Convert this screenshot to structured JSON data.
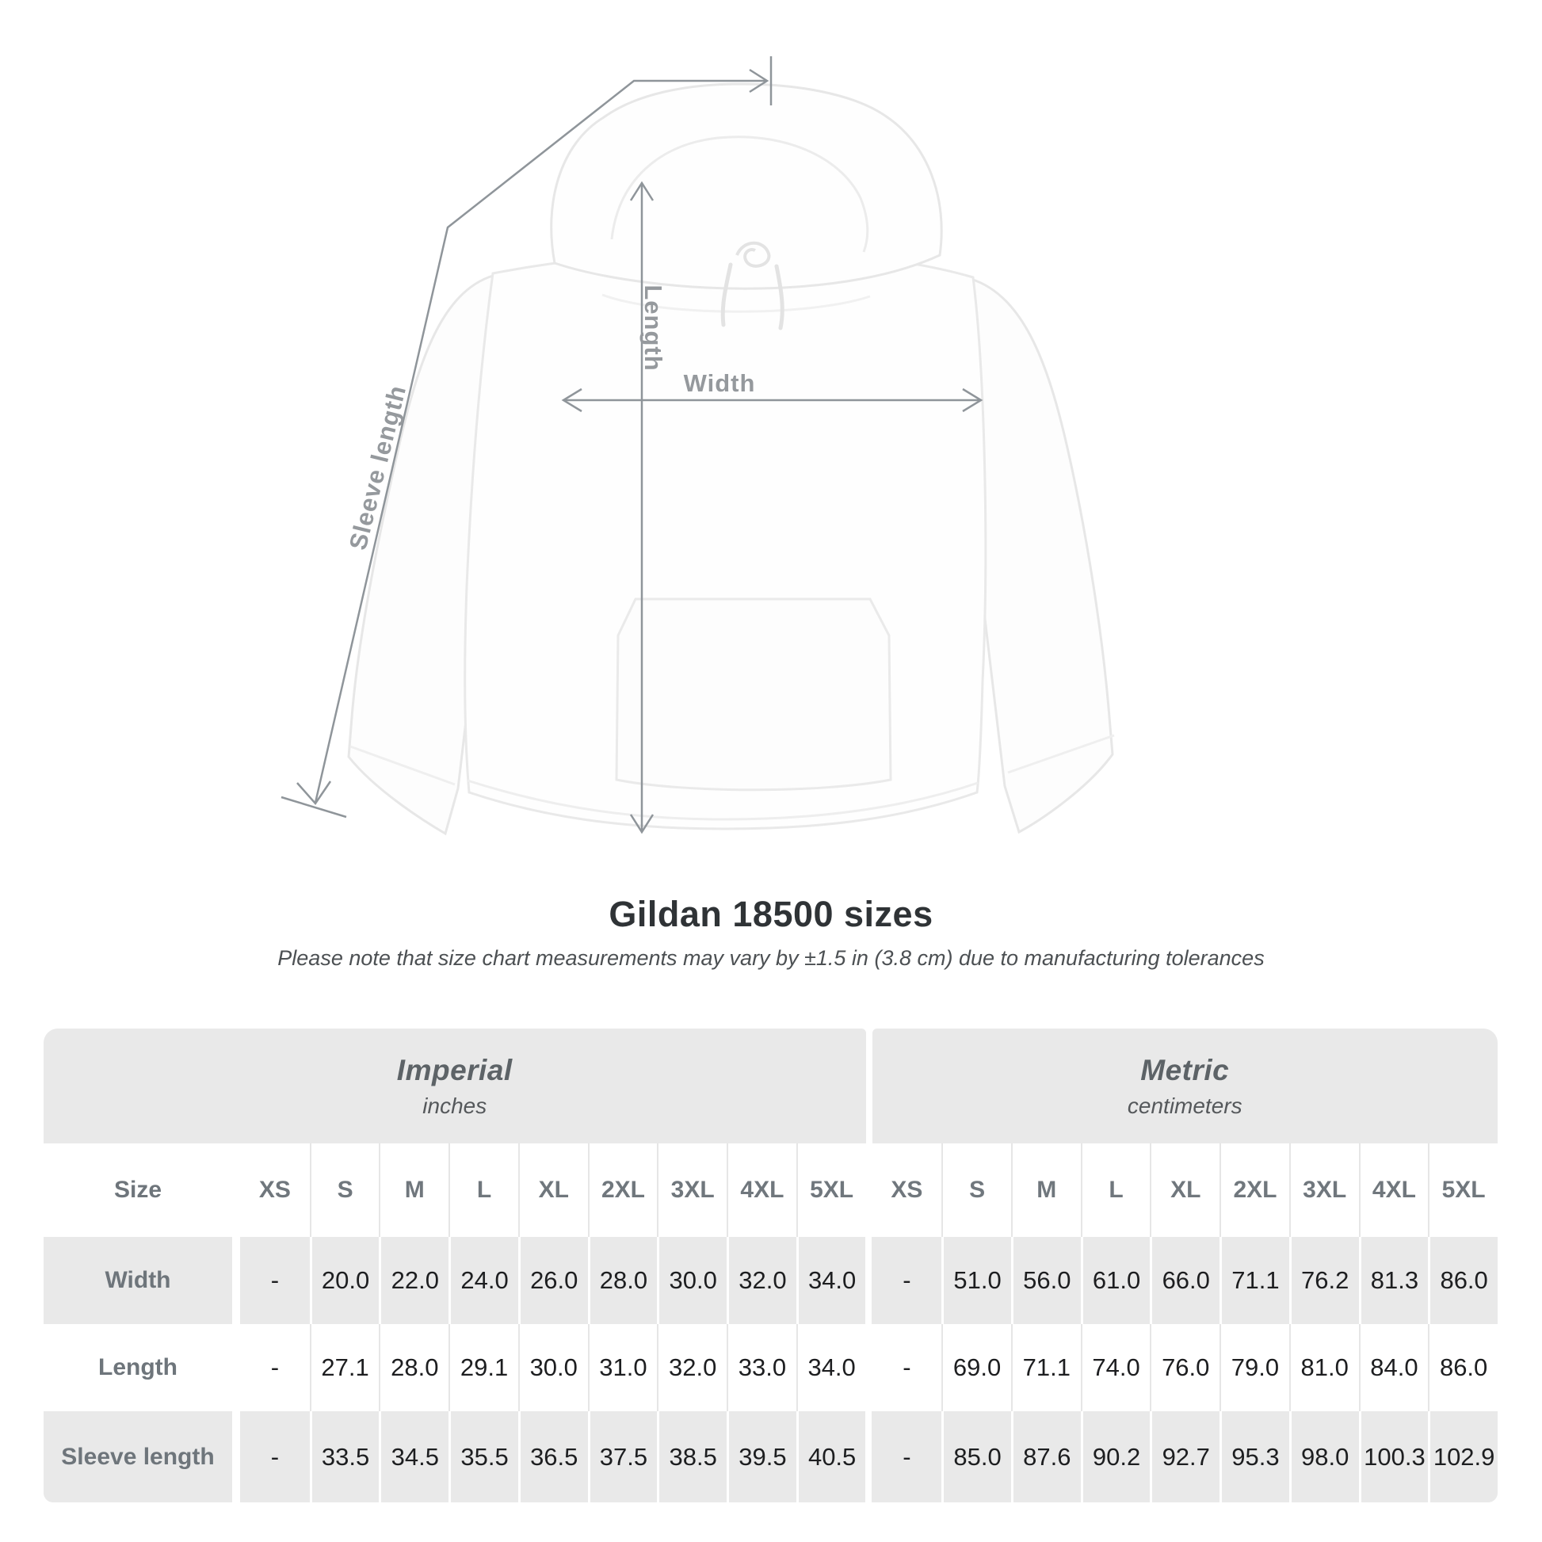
{
  "diagram": {
    "labels": {
      "sleeve_length": "Sleeve length",
      "length": "Length",
      "width": "Width"
    }
  },
  "heading": {
    "title": "Gildan 18500 sizes",
    "subtitle": "Please note that size chart measurements may vary by ±1.5 in (3.8 cm) due to manufacturing tolerances"
  },
  "table": {
    "groups": [
      {
        "label": "Imperial",
        "unit": "inches"
      },
      {
        "label": "Metric",
        "unit": "centimeters"
      }
    ],
    "corner_label": "Size",
    "sizes": [
      "XS",
      "S",
      "M",
      "L",
      "XL",
      "2XL",
      "3XL",
      "4XL",
      "5XL"
    ],
    "rows": [
      {
        "label": "Width",
        "imperial": [
          "-",
          "20.0",
          "22.0",
          "24.0",
          "26.0",
          "28.0",
          "30.0",
          "32.0",
          "34.0"
        ],
        "metric": [
          "-",
          "51.0",
          "56.0",
          "61.0",
          "66.0",
          "71.1",
          "76.2",
          "81.3",
          "86.0"
        ]
      },
      {
        "label": "Length",
        "imperial": [
          "-",
          "27.1",
          "28.0",
          "29.1",
          "30.0",
          "31.0",
          "32.0",
          "33.0",
          "34.0"
        ],
        "metric": [
          "-",
          "69.0",
          "71.1",
          "74.0",
          "76.0",
          "79.0",
          "81.0",
          "84.0",
          "86.0"
        ]
      },
      {
        "label": "Sleeve length",
        "imperial": [
          "-",
          "33.5",
          "34.5",
          "35.5",
          "36.5",
          "37.5",
          "38.5",
          "39.5",
          "40.5"
        ],
        "metric": [
          "-",
          "85.0",
          "87.6",
          "90.2",
          "92.7",
          "95.3",
          "98.0",
          "100.3",
          "102.9"
        ]
      }
    ]
  },
  "colors": {
    "row_gray": "#e9e9e9",
    "measure_line_gray": "#8f959a",
    "header_text_gray": "#6e757b",
    "value_text": "#1d1e20"
  }
}
